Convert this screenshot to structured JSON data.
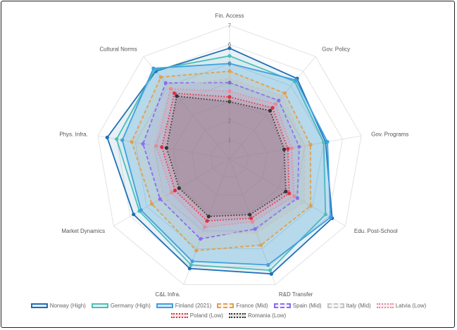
{
  "chart_data": {
    "type": "radar",
    "axes": [
      "Fin. Access",
      "Gov. Policy",
      "Gov. Programs",
      "Edu. Post-School",
      "R&D Transfer",
      "C&L Infra.",
      "Market Dynamics",
      "Phys. Infra.",
      "Cultural Norms"
    ],
    "rlim": [
      0,
      7
    ],
    "ticks": [
      "1",
      "2",
      "3",
      "4",
      "5",
      "6",
      "7"
    ],
    "grid": true,
    "legend_placement": "bottom",
    "series": [
      {
        "name": "Norway (High)",
        "values": [
          5.8,
          5.5,
          5.1,
          6.2,
          6.4,
          6.1,
          5.8,
          6.5,
          6.0
        ],
        "color": "#1f6fb5",
        "fill": "rgba(31,111,181,0.10)",
        "dash": "solid"
      },
      {
        "name": "Germany (High)",
        "values": [
          5.4,
          5.3,
          5.0,
          5.8,
          6.2,
          5.9,
          5.45,
          6.0,
          6.1
        ],
        "color": "#4bbfb5",
        "fill": "rgba(75,191,181,0.10)",
        "dash": "solid"
      },
      {
        "name": "Finland (2021)",
        "values": [
          5.0,
          5.4,
          5.2,
          6.1,
          5.9,
          5.7,
          5.35,
          5.7,
          6.2
        ],
        "color": "#3fa0e0",
        "fill": "rgba(63,160,224,0.22)",
        "dash": "solid"
      },
      {
        "name": "France (Mid)",
        "values": [
          4.6,
          4.5,
          4.3,
          4.9,
          4.8,
          5.1,
          4.7,
          5.2,
          5.6
        ],
        "color": "#e0a050",
        "fill": "rgba(224,160,80,0.10)",
        "dash": "dashed"
      },
      {
        "name": "Spain (Mid)",
        "values": [
          4.0,
          4.0,
          3.7,
          4.1,
          3.9,
          4.45,
          4.2,
          4.6,
          5.2
        ],
        "color": "#8a6cf0",
        "fill": "rgba(138,108,240,0.10)",
        "dash": "dashed"
      },
      {
        "name": "Italy (Mid)",
        "values": [
          4.2,
          4.3,
          4.0,
          4.5,
          4.1,
          4.2,
          4.0,
          4.1,
          4.95
        ],
        "color": "#c4c4c4",
        "fill": "rgba(180,180,180,0.15)",
        "dash": "dashed"
      },
      {
        "name": "Latvia (Low)",
        "values": [
          3.55,
          3.75,
          3.3,
          3.9,
          3.5,
          3.8,
          3.5,
          3.9,
          4.8
        ],
        "color": "#e8889c",
        "fill": "rgba(232,136,156,0.15)",
        "dash": "dotted"
      },
      {
        "name": "Poland (Low)",
        "values": [
          3.25,
          3.5,
          3.1,
          3.6,
          3.3,
          3.45,
          3.3,
          3.6,
          4.5
        ],
        "color": "#e03040",
        "fill": "rgba(224,48,64,0.12)",
        "dash": "dotted"
      },
      {
        "name": "Romania (Low)",
        "values": [
          3.0,
          3.3,
          2.9,
          3.4,
          3.1,
          3.2,
          3.05,
          3.35,
          4.3
        ],
        "color": "#333333",
        "fill": "rgba(60,60,60,0.15)",
        "dash": "dotted"
      }
    ]
  }
}
